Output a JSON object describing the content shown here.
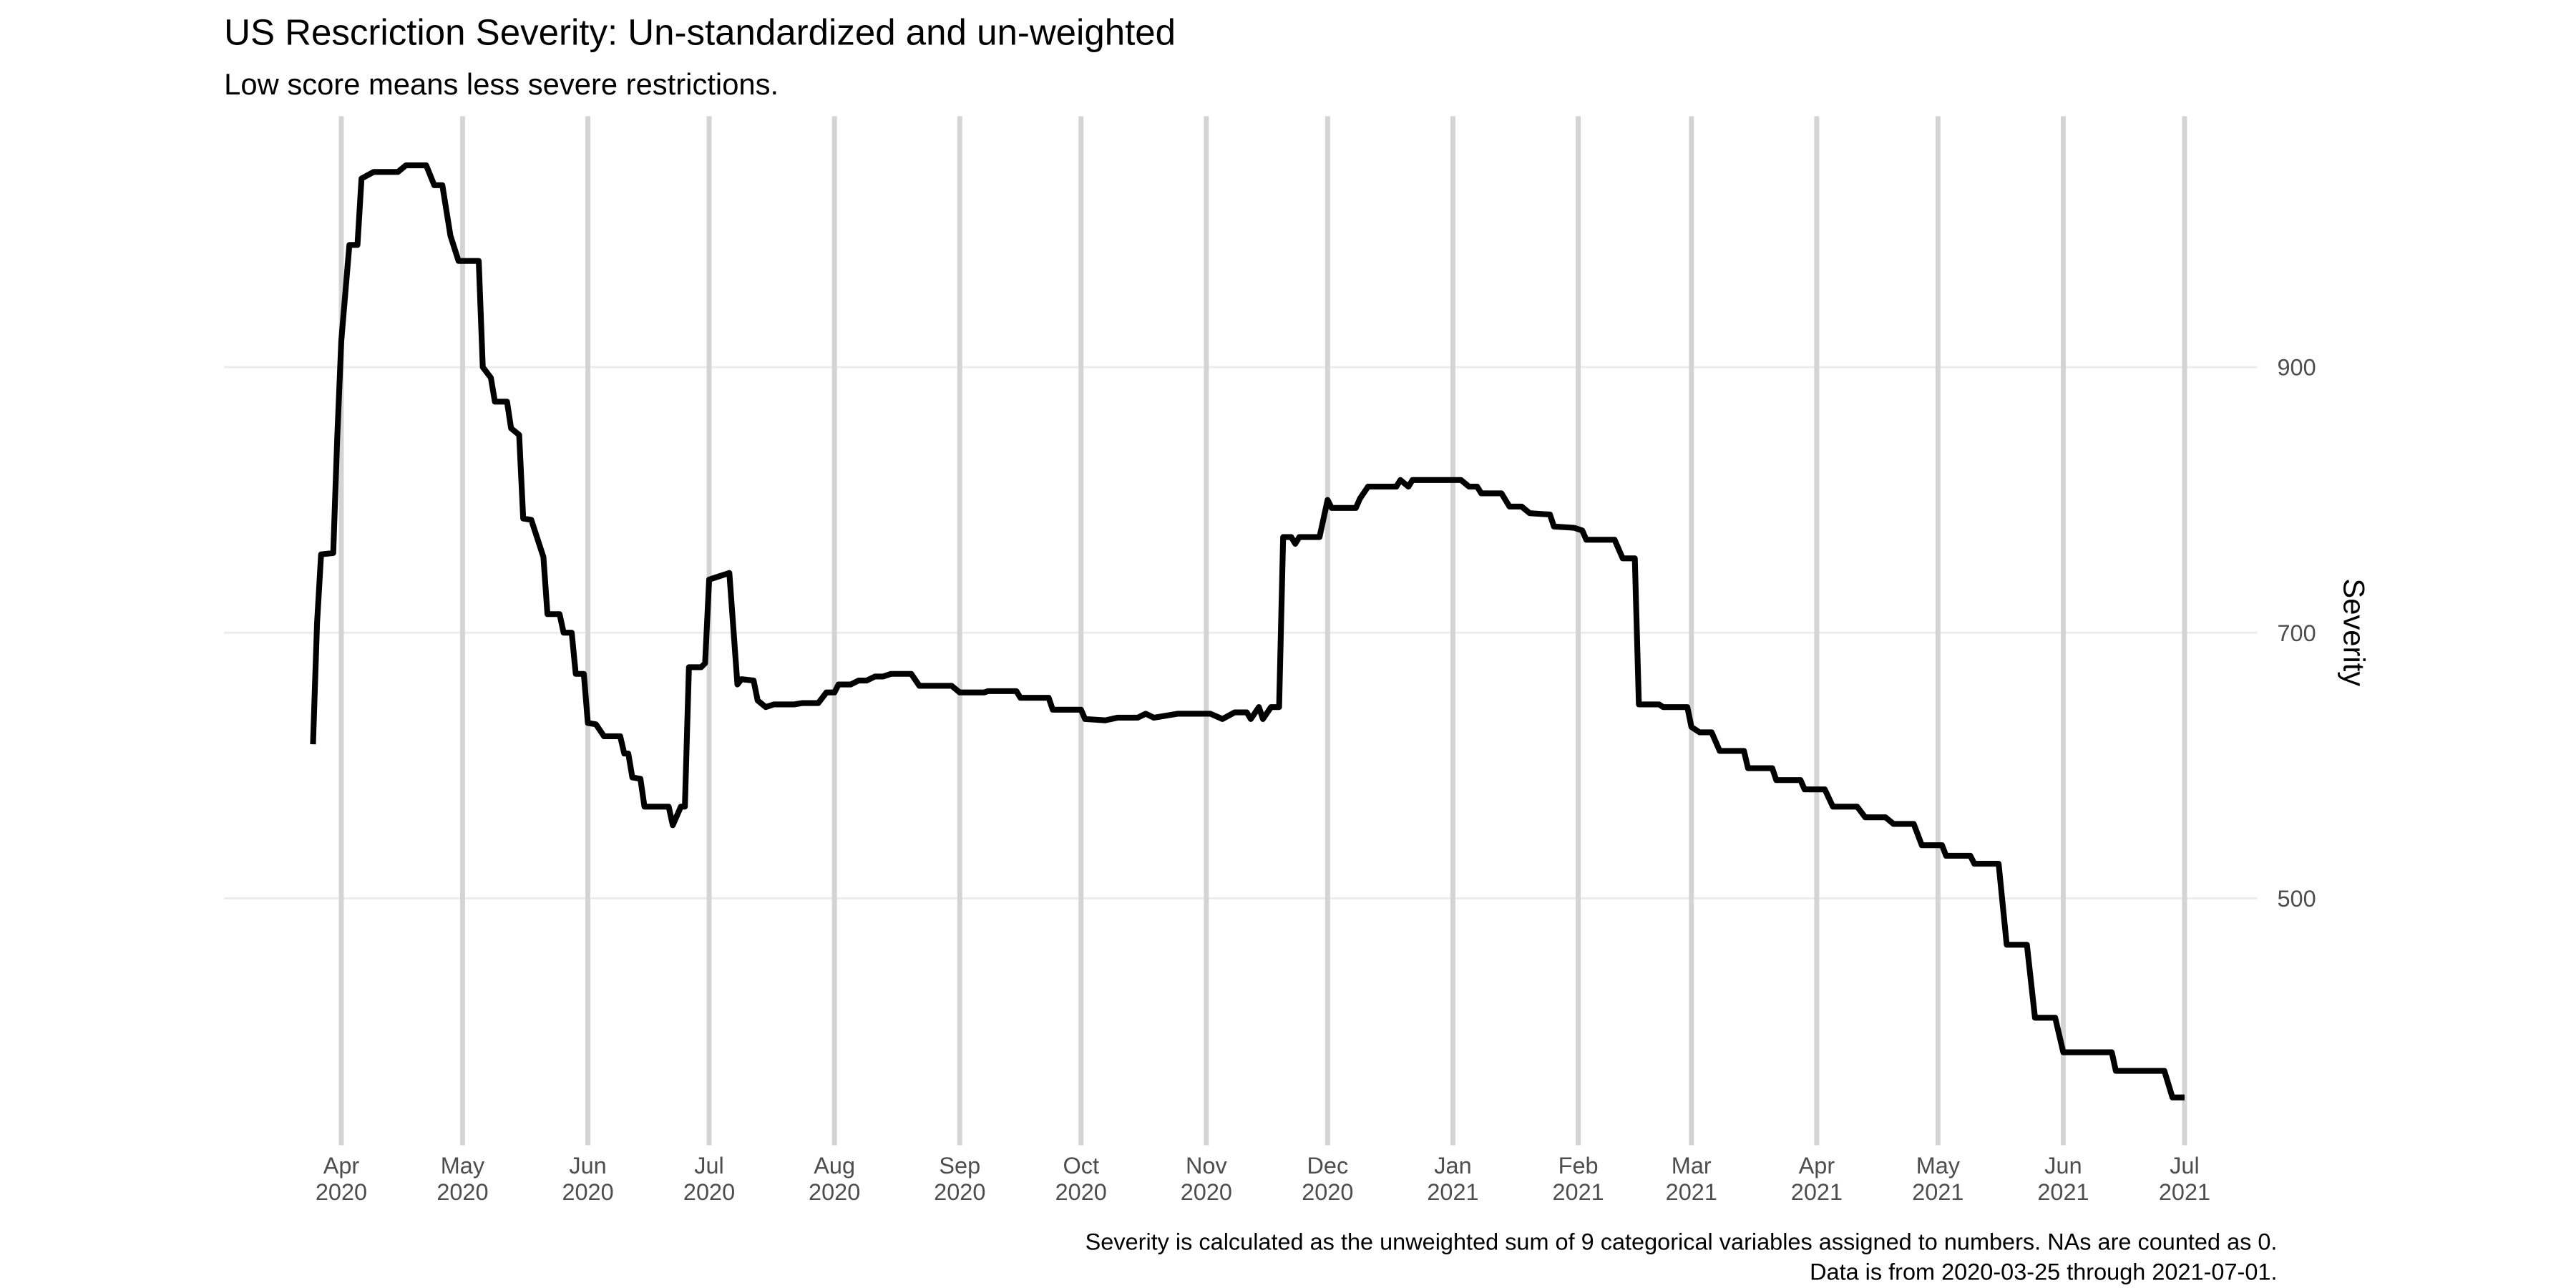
{
  "chart_data": {
    "type": "line",
    "title": "US Rescriction Severity: Un-standardized and un-weighted",
    "subtitle": "Low score means less severe restrictions.",
    "y_label": "Severity",
    "caption": [
      "Severity is calculated as the unweighted sum of 9 categorical variables assigned to numbers. NAs are counted as 0.",
      "Data is from 2020-03-25 through 2021-07-01."
    ],
    "color": "#000000",
    "grid": true,
    "y_axis_side": "right",
    "xlim": [
      "2020-03-03",
      "2021-07-19"
    ],
    "ylim": [
      314,
      1089
    ],
    "yticks": [
      500,
      700,
      900
    ],
    "xticks": [
      {
        "value": "2020-04-01",
        "label": "Apr\n2020"
      },
      {
        "value": "2020-05-01",
        "label": "May\n2020"
      },
      {
        "value": "2020-06-01",
        "label": "Jun\n2020"
      },
      {
        "value": "2020-07-01",
        "label": "Jul\n2020"
      },
      {
        "value": "2020-08-01",
        "label": "Aug\n2020"
      },
      {
        "value": "2020-09-01",
        "label": "Sep\n2020"
      },
      {
        "value": "2020-10-01",
        "label": "Oct\n2020"
      },
      {
        "value": "2020-11-01",
        "label": "Nov\n2020"
      },
      {
        "value": "2020-12-01",
        "label": "Dec\n2020"
      },
      {
        "value": "2021-01-01",
        "label": "Jan\n2021"
      },
      {
        "value": "2021-02-01",
        "label": "Feb\n2021"
      },
      {
        "value": "2021-03-01",
        "label": "Mar\n2021"
      },
      {
        "value": "2021-04-01",
        "label": "Apr\n2021"
      },
      {
        "value": "2021-05-01",
        "label": "May\n2021"
      },
      {
        "value": "2021-06-01",
        "label": "Jun\n2021"
      },
      {
        "value": "2021-07-01",
        "label": "Jul\n2021"
      }
    ],
    "x": [
      "2020-03-25",
      "2020-03-26",
      "2020-03-27",
      "2020-03-30",
      "2020-03-31",
      "2020-04-01",
      "2020-04-03",
      "2020-04-05",
      "2020-04-06",
      "2020-04-09",
      "2020-04-15",
      "2020-04-17",
      "2020-04-22",
      "2020-04-24",
      "2020-04-26",
      "2020-04-28",
      "2020-04-30",
      "2020-05-05",
      "2020-05-06",
      "2020-05-08",
      "2020-05-09",
      "2020-05-12",
      "2020-05-13",
      "2020-05-15",
      "2020-05-16",
      "2020-05-18",
      "2020-05-21",
      "2020-05-22",
      "2020-05-25",
      "2020-05-26",
      "2020-05-28",
      "2020-05-29",
      "2020-05-31",
      "2020-06-01",
      "2020-06-03",
      "2020-06-05",
      "2020-06-09",
      "2020-06-10",
      "2020-06-11",
      "2020-06-12",
      "2020-06-14",
      "2020-06-15",
      "2020-06-21",
      "2020-06-22",
      "2020-06-24",
      "2020-06-25",
      "2020-06-26",
      "2020-06-29",
      "2020-06-30",
      "2020-07-01",
      "2020-07-03",
      "2020-07-06",
      "2020-07-08",
      "2020-07-09",
      "2020-07-12",
      "2020-07-13",
      "2020-07-15",
      "2020-07-17",
      "2020-07-22",
      "2020-07-24",
      "2020-07-28",
      "2020-07-30",
      "2020-08-01",
      "2020-08-02",
      "2020-08-05",
      "2020-08-07",
      "2020-08-09",
      "2020-08-11",
      "2020-08-13",
      "2020-08-15",
      "2020-08-20",
      "2020-08-22",
      "2020-08-30",
      "2020-09-01",
      "2020-09-07",
      "2020-09-08",
      "2020-09-15",
      "2020-09-16",
      "2020-09-23",
      "2020-09-24",
      "2020-10-01",
      "2020-10-02",
      "2020-10-07",
      "2020-10-10",
      "2020-10-15",
      "2020-10-17",
      "2020-10-19",
      "2020-10-25",
      "2020-11-02",
      "2020-11-05",
      "2020-11-08",
      "2020-11-11",
      "2020-11-12",
      "2020-11-14",
      "2020-11-15",
      "2020-11-17",
      "2020-11-19",
      "2020-11-20",
      "2020-11-22",
      "2020-11-23",
      "2020-11-24",
      "2020-11-29",
      "2020-12-01",
      "2020-12-02",
      "2020-12-08",
      "2020-12-09",
      "2020-12-11",
      "2020-12-18",
      "2020-12-19",
      "2020-12-21",
      "2020-12-22",
      "2021-01-03",
      "2021-01-05",
      "2021-01-07",
      "2021-01-08",
      "2021-01-13",
      "2021-01-15",
      "2021-01-18",
      "2021-01-20",
      "2021-01-25",
      "2021-01-26",
      "2021-01-31",
      "2021-02-02",
      "2021-02-03",
      "2021-02-10",
      "2021-02-12",
      "2021-02-15",
      "2021-02-16",
      "2021-02-21",
      "2021-02-22",
      "2021-02-28",
      "2021-03-01",
      "2021-03-03",
      "2021-03-06",
      "2021-03-08",
      "2021-03-14",
      "2021-03-15",
      "2021-03-21",
      "2021-03-22",
      "2021-03-28",
      "2021-03-29",
      "2021-04-03",
      "2021-04-05",
      "2021-04-11",
      "2021-04-13",
      "2021-04-18",
      "2021-04-20",
      "2021-04-25",
      "2021-04-27",
      "2021-05-02",
      "2021-05-03",
      "2021-05-09",
      "2021-05-10",
      "2021-05-16",
      "2021-05-18",
      "2021-05-23",
      "2021-05-25",
      "2021-05-30",
      "2021-06-01",
      "2021-06-13",
      "2021-06-14",
      "2021-06-26",
      "2021-06-28",
      "2021-07-01"
    ],
    "values": [
      616,
      707,
      759,
      760,
      847,
      920,
      992,
      992,
      1042,
      1047,
      1047,
      1052,
      1052,
      1037,
      1037,
      999,
      980,
      980,
      900,
      892,
      874,
      874,
      854,
      849,
      786,
      785,
      757,
      714,
      714,
      700,
      700,
      669,
      669,
      632,
      631,
      622,
      622,
      609,
      609,
      591,
      590,
      569,
      569,
      555,
      569,
      569,
      674,
      674,
      677,
      740,
      742,
      745,
      661,
      665,
      664,
      649,
      644,
      646,
      646,
      647,
      647,
      655,
      655,
      661,
      661,
      664,
      664,
      667,
      667,
      669,
      669,
      660,
      660,
      655,
      655,
      656,
      656,
      651,
      651,
      642,
      642,
      635,
      634,
      636,
      636,
      639,
      636,
      639,
      639,
      635,
      640,
      640,
      635,
      644,
      635,
      644,
      644,
      772,
      772,
      767,
      772,
      772,
      800,
      794,
      794,
      801,
      810,
      810,
      815,
      810,
      815,
      815,
      810,
      810,
      805,
      805,
      795,
      795,
      790,
      789,
      780,
      779,
      777,
      770,
      770,
      756,
      756,
      646,
      646,
      644,
      644,
      629,
      625,
      625,
      611,
      611,
      598,
      598,
      589,
      589,
      582,
      582,
      569,
      569,
      561,
      561,
      556,
      556,
      540,
      540,
      532,
      532,
      526,
      526,
      465,
      465,
      410,
      410,
      384,
      384,
      370,
      370,
      350,
      350
    ]
  }
}
